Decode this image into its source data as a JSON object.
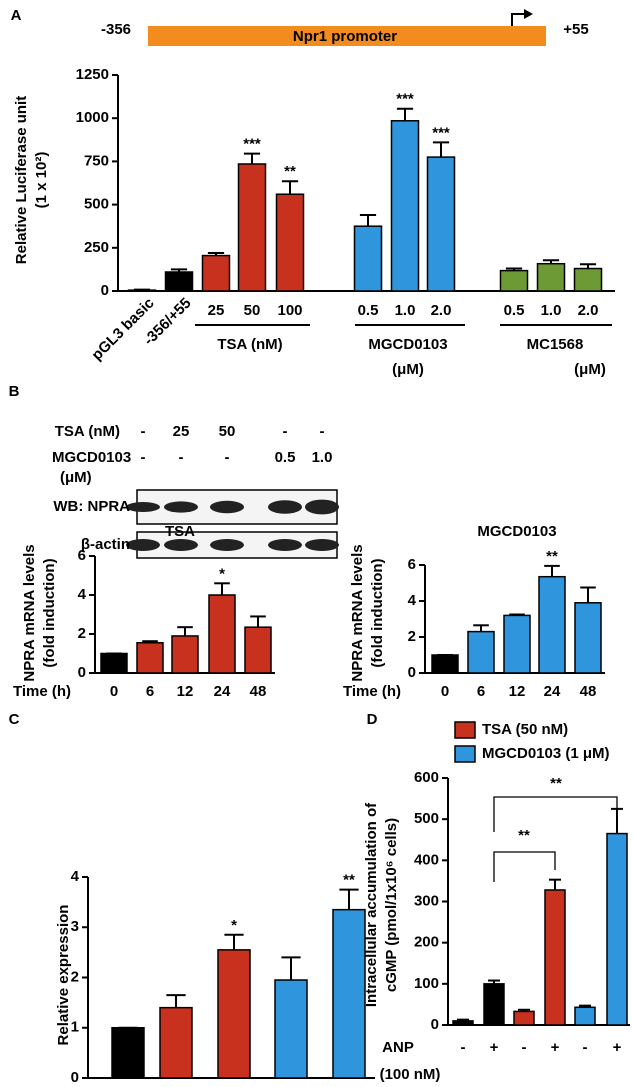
{
  "figure": {
    "panel_labels": [
      "A",
      "B",
      "C",
      "D"
    ],
    "promoter": {
      "start": "-356",
      "name": "Npr1 promoter",
      "end": "+55"
    },
    "western_blot": {
      "rows": [
        {
          "label": [
            "TSA (nM)"
          ],
          "lanes": [
            "-",
            "25",
            "50",
            "-",
            "-"
          ]
        },
        {
          "label": [
            "MGCD0103",
            "(μM)"
          ],
          "lanes": [
            "-",
            "-",
            "-",
            "0.5",
            "1.0"
          ]
        }
      ],
      "bands": [
        "WB: NPRA",
        "β-actin"
      ]
    }
  },
  "chart_data": [
    {
      "type": "bar",
      "ylabel": [
        "Relative Luciferase unit",
        "(1 x 10²)"
      ],
      "categories": [
        "pGL3 basic",
        "-356/+55",
        "25",
        "50",
        "100",
        "0.5",
        "1.0",
        "2.0",
        "0.5",
        "1.0",
        "2.0"
      ],
      "values": [
        5,
        110,
        205,
        735,
        560,
        375,
        985,
        775,
        118,
        158,
        130
      ],
      "errors": [
        3,
        15,
        15,
        60,
        75,
        65,
        70,
        85,
        12,
        20,
        25
      ],
      "colors": [
        "#000000",
        "#000000",
        "#c8311e",
        "#c8311e",
        "#c8311e",
        "#2f95dd",
        "#2f95dd",
        "#2f95dd",
        "#6e9a36",
        "#6e9a36",
        "#6e9a36"
      ],
      "significance": [
        null,
        null,
        null,
        "***",
        "**",
        null,
        "***",
        "***",
        null,
        null,
        null
      ],
      "groups": [
        [
          "TSA (nM)"
        ],
        [
          "MGCD0103",
          "(μM)"
        ],
        [
          "MC1568",
          "(μM)"
        ]
      ],
      "ylim": [
        0,
        1250
      ],
      "yticks": [
        0,
        250,
        500,
        750,
        1000,
        1250
      ]
    },
    {
      "type": "bar",
      "title": "TSA",
      "ylabel": [
        "NPRA mRNA levels",
        "(fold induction)"
      ],
      "xlabel": [
        "Time (h)"
      ],
      "categories": [
        "0",
        "6",
        "12",
        "24",
        "48"
      ],
      "values": [
        1,
        1.55,
        1.9,
        4.0,
        2.35
      ],
      "errors": [
        0,
        0.08,
        0.45,
        0.6,
        0.55
      ],
      "colors": [
        "#000000",
        "#c8311e",
        "#c8311e",
        "#c8311e",
        "#c8311e"
      ],
      "significance": [
        null,
        null,
        null,
        "*",
        null
      ],
      "ylim": [
        0,
        6
      ],
      "yticks": [
        0,
        2,
        4,
        6
      ]
    },
    {
      "type": "bar",
      "title": "MGCD0103",
      "ylabel": [
        "NPRA mRNA levels",
        "(fold induction)"
      ],
      "xlabel": [
        "Time (h)"
      ],
      "categories": [
        "0",
        "6",
        "12",
        "24",
        "48"
      ],
      "values": [
        1,
        2.3,
        3.2,
        5.35,
        3.9
      ],
      "errors": [
        0,
        0.35,
        0.05,
        0.6,
        0.85
      ],
      "colors": [
        "#000000",
        "#2f95dd",
        "#2f95dd",
        "#2f95dd",
        "#2f95dd"
      ],
      "significance": [
        null,
        null,
        null,
        "**",
        null
      ],
      "ylim": [
        0,
        6
      ],
      "yticks": [
        0,
        2,
        4,
        6
      ]
    },
    {
      "type": "bar",
      "ylabel": [
        "Relative expression"
      ],
      "values": [
        1,
        1.4,
        2.55,
        1.95,
        3.35
      ],
      "errors": [
        0,
        0.25,
        0.3,
        0.45,
        0.4
      ],
      "colors": [
        "#000000",
        "#c8311e",
        "#c8311e",
        "#2f95dd",
        "#2f95dd"
      ],
      "significance": [
        null,
        null,
        "*",
        null,
        "**"
      ],
      "ylim": [
        0,
        4
      ],
      "yticks": [
        0,
        1,
        2,
        3,
        4
      ]
    },
    {
      "type": "bar",
      "ylabel": [
        "Intracellular accumulation of",
        "cGMP  (pmol/1x10⁶ cells)"
      ],
      "xlabel": [
        "ANP",
        "(100 nM)"
      ],
      "categories": [
        "-",
        "+",
        "-",
        "+",
        "-",
        "+"
      ],
      "values": [
        10,
        100,
        33,
        328,
        43,
        465
      ],
      "errors": [
        3,
        8,
        4,
        25,
        4,
        60
      ],
      "colors": [
        "#000000",
        "#000000",
        "#c8311e",
        "#c8311e",
        "#2f95dd",
        "#2f95dd"
      ],
      "legend": [
        {
          "name": "TSA (50 nM)",
          "color": "#c8311e"
        },
        {
          "name": "MGCD0103 (1 μM)",
          "color": "#2f95dd"
        }
      ],
      "brackets": [
        "**",
        "**"
      ],
      "ylim": [
        0,
        600
      ],
      "yticks": [
        0,
        100,
        200,
        300,
        400,
        500,
        600
      ]
    }
  ]
}
